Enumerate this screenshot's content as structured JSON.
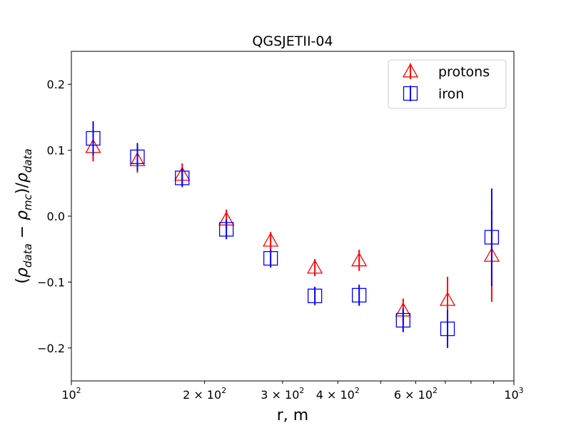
{
  "chart_data": {
    "type": "scatter",
    "title": "QGSJETII-04",
    "xlabel": "r, m",
    "ylabel": "(ρdata − ρmc)/ρdata",
    "ylabel_parts": {
      "open": "(",
      "rho1": "ρ",
      "sub1": "data",
      "minus": " − ",
      "rho2": "ρ",
      "sub2": "mc",
      "mid": ")/",
      "rho3": "ρ",
      "sub3": "data"
    },
    "x_scale": "log",
    "xlim": [
      100,
      1000
    ],
    "ylim": [
      -0.25,
      0.25
    ],
    "y_ticks": [
      -0.2,
      -0.1,
      0.0,
      0.1,
      0.2
    ],
    "y_tick_labels": [
      "−0.2",
      "−0.1",
      "0.0",
      "0.1",
      "0.2"
    ],
    "x_tick_labels": [
      {
        "value": 100,
        "base": "10",
        "exp": "2"
      },
      {
        "value": 200,
        "base": "2 × 10",
        "exp": "2"
      },
      {
        "value": 300,
        "base": "3 × 10",
        "exp": "2"
      },
      {
        "value": 400,
        "base": "4 × 10",
        "exp": "2"
      },
      {
        "value": 600,
        "base": "6 × 10",
        "exp": "2"
      },
      {
        "value": 1000,
        "base": "10",
        "exp": "3"
      }
    ],
    "x_minor_ticks": [
      500,
      700,
      800,
      900
    ],
    "legend_position": "top-right",
    "series": [
      {
        "name": "protons",
        "marker": "triangle",
        "color": "#ff0000",
        "x": [
          112,
          141,
          178,
          224,
          282,
          355,
          447,
          562,
          708,
          891
        ],
        "y": [
          0.105,
          0.085,
          0.063,
          -0.005,
          -0.037,
          -0.078,
          -0.067,
          -0.143,
          -0.127,
          -0.06
        ],
        "yerr": [
          0.022,
          0.019,
          0.017,
          0.015,
          0.013,
          0.013,
          0.016,
          0.018,
          0.035,
          0.07
        ]
      },
      {
        "name": "iron",
        "marker": "square",
        "color": "#0000ff",
        "x": [
          112,
          141,
          178,
          224,
          282,
          355,
          447,
          562,
          708,
          891
        ],
        "y": [
          0.118,
          0.09,
          0.058,
          -0.02,
          -0.064,
          -0.121,
          -0.12,
          -0.158,
          -0.171,
          -0.032
        ],
        "yerr": [
          0.026,
          0.021,
          0.014,
          0.015,
          0.014,
          0.014,
          0.016,
          0.018,
          0.029,
          0.074
        ]
      }
    ]
  }
}
